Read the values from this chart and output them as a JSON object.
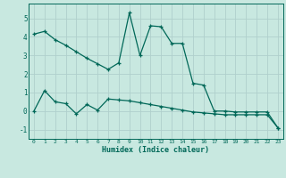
{
  "xlabel": "Humidex (Indice chaleur)",
  "background_color": "#c8e8e0",
  "grid_color": "#b0d0cc",
  "line_color": "#006858",
  "line1_x": [
    0,
    1,
    2,
    3,
    4,
    5,
    6,
    7,
    8,
    9,
    10,
    11,
    12,
    13,
    14,
    15,
    16,
    17,
    18,
    19,
    20,
    21,
    22,
    23
  ],
  "line1_y": [
    4.15,
    4.3,
    3.85,
    3.55,
    3.2,
    2.85,
    2.55,
    2.25,
    2.6,
    5.3,
    3.0,
    4.6,
    4.55,
    3.65,
    3.65,
    1.5,
    1.4,
    0.0,
    0.0,
    -0.05,
    -0.05,
    -0.05,
    -0.05,
    -0.9
  ],
  "line2_x": [
    0,
    1,
    2,
    3,
    4,
    5,
    6,
    7,
    8,
    9,
    10,
    11,
    12,
    13,
    14,
    15,
    16,
    17,
    18,
    19,
    20,
    21,
    22,
    23
  ],
  "line2_y": [
    0.0,
    1.1,
    0.5,
    0.4,
    -0.15,
    0.35,
    0.05,
    0.65,
    0.6,
    0.55,
    0.45,
    0.35,
    0.25,
    0.15,
    0.05,
    -0.05,
    -0.1,
    -0.15,
    -0.2,
    -0.2,
    -0.2,
    -0.2,
    -0.2,
    -0.9
  ],
  "ylim": [
    -1.5,
    5.8
  ],
  "xlim": [
    -0.5,
    23.5
  ],
  "yticks": [
    -1,
    0,
    1,
    2,
    3,
    4,
    5
  ],
  "xticks": [
    0,
    1,
    2,
    3,
    4,
    5,
    6,
    7,
    8,
    9,
    10,
    11,
    12,
    13,
    14,
    15,
    16,
    17,
    18,
    19,
    20,
    21,
    22,
    23
  ]
}
